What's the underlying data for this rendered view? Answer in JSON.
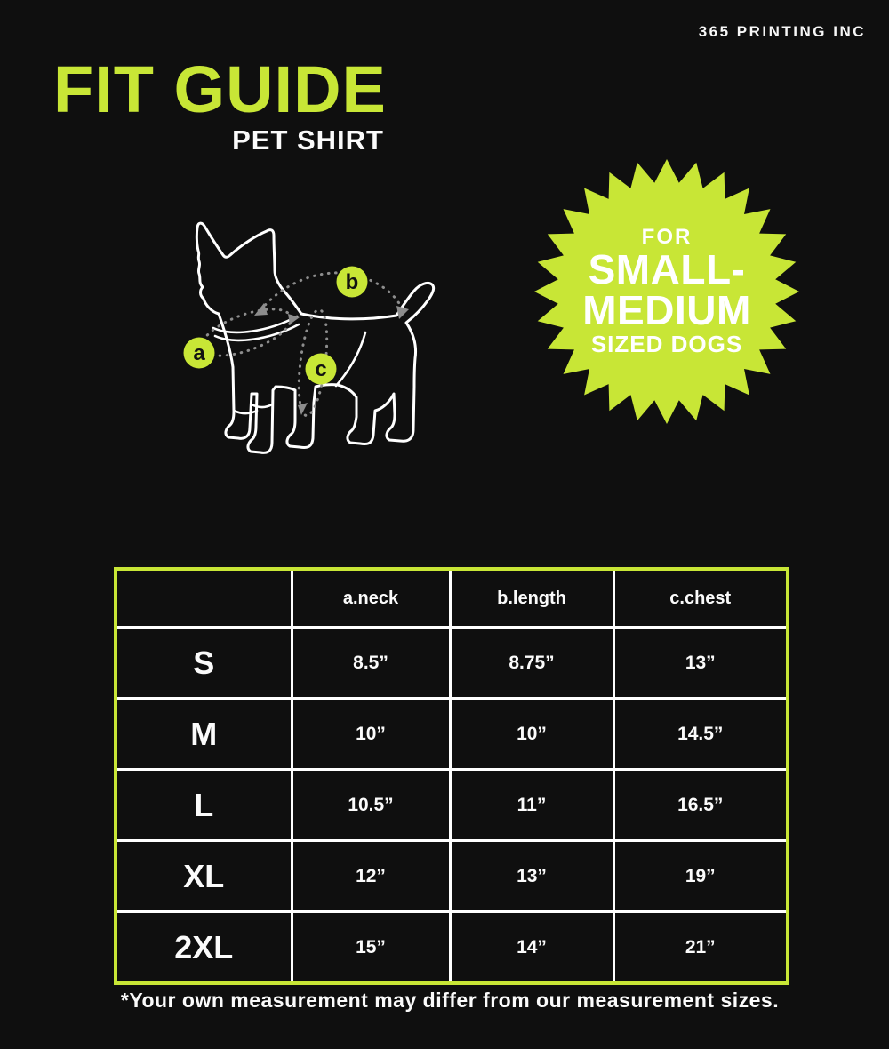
{
  "brand": "365 PRINTING INC",
  "title": "FIT GUIDE",
  "subtitle": "PET SHIRT",
  "badge": {
    "line1": "FOR",
    "line2": "SMALL-",
    "line3": "MEDIUM",
    "line4": "SIZED DOGS"
  },
  "diagram": {
    "markers": [
      {
        "label": "a",
        "measures": "neck"
      },
      {
        "label": "b",
        "measures": "length"
      },
      {
        "label": "c",
        "measures": "chest"
      }
    ]
  },
  "table": {
    "headers": [
      "",
      "a.neck",
      "b.length",
      "c.chest"
    ],
    "rows": [
      {
        "size": "S",
        "values": [
          "8.5”",
          "8.75”",
          "13”"
        ]
      },
      {
        "size": "M",
        "values": [
          "10”",
          "10”",
          "14.5”"
        ]
      },
      {
        "size": "L",
        "values": [
          "10.5”",
          "11”",
          "16.5”"
        ]
      },
      {
        "size": "XL",
        "values": [
          "12”",
          "13”",
          "19”"
        ]
      },
      {
        "size": "2XL",
        "values": [
          "15”",
          "14”",
          "21”"
        ]
      }
    ]
  },
  "footnote": "*Your own measurement may differ from our measurement sizes.",
  "colors": {
    "background": "#0f0f0f",
    "accent_green": "#c8e636",
    "text_white": "#ffffff",
    "dotted_gray": "#8d8d8d",
    "marker_letter": "#121212"
  }
}
